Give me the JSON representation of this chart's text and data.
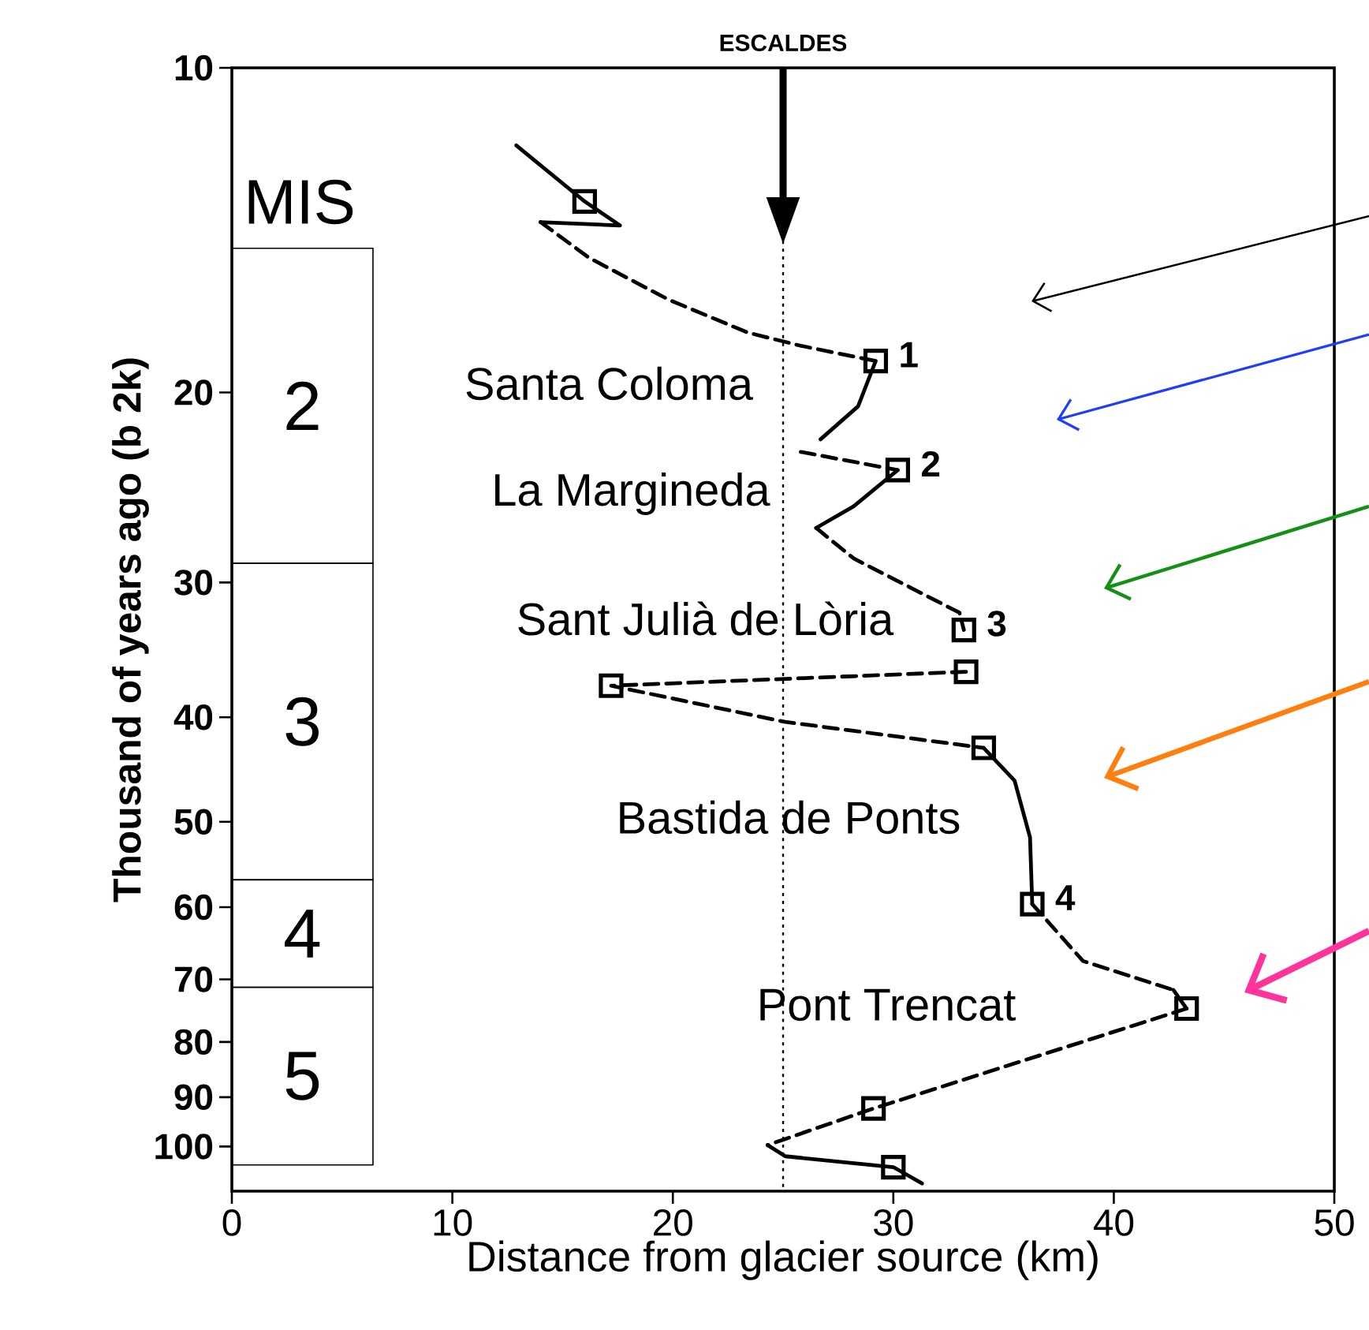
{
  "chart_data": {
    "type": "line",
    "xlabel": "Distance from glacier source (km)",
    "ylabel": "Thousand of years ago (b 2k)",
    "xlim": [
      0,
      50
    ],
    "xticks": [
      0,
      10,
      20,
      30,
      40,
      50
    ],
    "ylim": [
      110,
      10
    ],
    "yticks": [
      10,
      20,
      30,
      40,
      50,
      60,
      70,
      80,
      90,
      100
    ],
    "log": "y",
    "grid": false,
    "series": [
      {
        "type": "line",
        "line_style": "solid",
        "color": "#000000",
        "x": [
          12.9,
          16.0,
          17.6,
          14.0
        ],
        "values": [
          11.8,
          13.3,
          14.0,
          13.9
        ]
      },
      {
        "type": "line",
        "line_style": "dashed",
        "color": "#000000",
        "x": [
          14.0,
          16.2,
          19.8,
          23.4,
          25.8,
          29.2
        ],
        "values": [
          13.9,
          15.0,
          16.4,
          17.6,
          18.1,
          18.7
        ]
      },
      {
        "type": "line",
        "line_style": "solid",
        "color": "#000000",
        "x": [
          29.2,
          28.4,
          26.7
        ],
        "values": [
          18.7,
          20.6,
          22.1
        ]
      },
      {
        "type": "line",
        "line_style": "dashed",
        "color": "#000000",
        "x": [
          25.8,
          30.2
        ],
        "values": [
          22.7,
          23.6
        ]
      },
      {
        "type": "line",
        "line_style": "solid",
        "color": "#000000",
        "x": [
          30.2,
          28.2,
          26.5
        ],
        "values": [
          23.6,
          25.5,
          26.7
        ]
      },
      {
        "type": "line",
        "line_style": "dashed",
        "color": "#000000",
        "x": [
          26.5,
          28.2,
          33.0,
          33.2
        ],
        "values": [
          26.7,
          28.5,
          32.0,
          33.2
        ]
      },
      {
        "type": "line",
        "line_style": "dashed",
        "color": "#000000",
        "x": [
          33.3,
          17.2,
          25.1,
          34.1
        ],
        "values": [
          36.3,
          37.4,
          40.4,
          42.7
        ]
      },
      {
        "type": "line",
        "line_style": "solid",
        "color": "#000000",
        "x": [
          34.1,
          35.5,
          36.2,
          36.3
        ],
        "values": [
          42.7,
          45.8,
          51.7,
          59.6
        ]
      },
      {
        "type": "line",
        "line_style": "dashed",
        "color": "#000000",
        "x": [
          36.3,
          38.6,
          42.7
        ],
        "values": [
          59.6,
          67.3,
          71.6
        ]
      },
      {
        "type": "line",
        "line_style": "solid",
        "color": "#000000",
        "x": [
          42.7,
          43.3
        ],
        "values": [
          71.6,
          74.5
        ]
      },
      {
        "type": "line",
        "line_style": "dashed",
        "color": "#000000",
        "x": [
          43.3,
          29.1,
          24.3
        ],
        "values": [
          74.5,
          92.2,
          99.7
        ]
      },
      {
        "type": "line",
        "line_style": "solid",
        "color": "#000000",
        "x": [
          24.3,
          25.1,
          30.0,
          31.3
        ],
        "values": [
          99.7,
          102.1,
          104.5,
          108.2
        ]
      },
      {
        "type": "scatter",
        "marker": "square",
        "color": "#000000",
        "x": [
          16.0,
          29.2,
          30.2,
          33.2,
          33.3,
          17.2,
          34.1,
          36.3,
          43.3,
          29.1,
          30.0
        ],
        "values": [
          13.3,
          18.7,
          23.6,
          33.2,
          36.3,
          37.4,
          42.7,
          59.6,
          74.5,
          92.2,
          104.5
        ]
      }
    ],
    "ref_lines": [
      {
        "axis": "x",
        "value": 25,
        "label": "ESCALDES",
        "line_style": "dotted"
      }
    ],
    "bands": [
      {
        "axis": "y",
        "from": 14.7,
        "to": 28.8,
        "label": "2",
        "color": "#ffffff"
      },
      {
        "axis": "y",
        "from": 28.8,
        "to": 56.6,
        "label": "3",
        "color": "#ffffff"
      },
      {
        "axis": "y",
        "from": 56.6,
        "to": 71.2,
        "label": "4",
        "color": "#ffffff"
      },
      {
        "axis": "y",
        "from": 71.2,
        "to": 104,
        "label": "5",
        "color": "#ffffff"
      }
    ],
    "annotations": [
      "MIS",
      "Santa Coloma",
      "La Margineda",
      "Sant Julià de Lòria",
      "Bastida de Ponts",
      "Pont Trencat",
      {
        "text": "1",
        "x": 29.2,
        "y": 18.7
      },
      {
        "text": "2",
        "x": 30.2,
        "y": 23.6
      },
      {
        "text": "3",
        "x": 33.2,
        "y": 33.2
      },
      {
        "text": "4",
        "x": 36.3,
        "y": 59.6
      }
    ]
  }
}
